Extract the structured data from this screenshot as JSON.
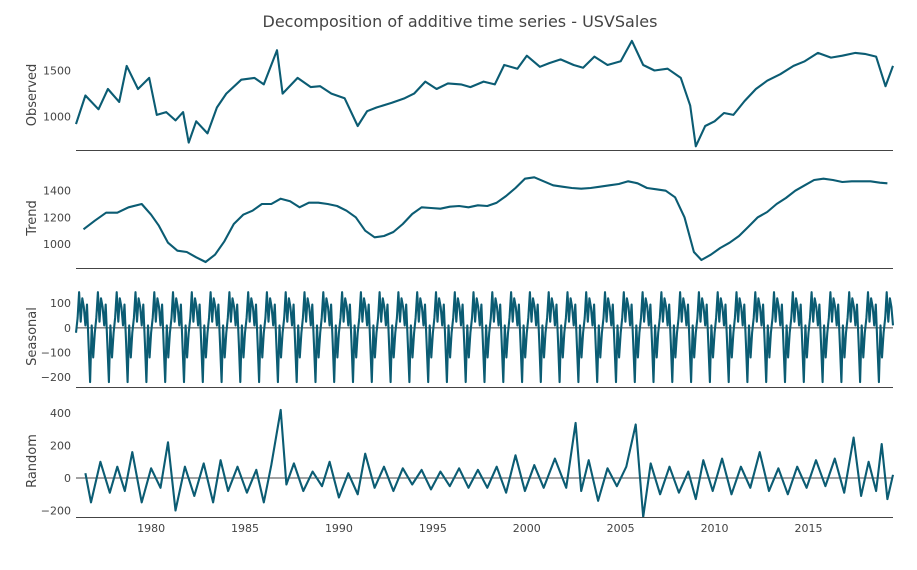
{
  "chart_data": {
    "type": "line",
    "title": "Decomposition of additive time series - USVSales",
    "x_range": [
      1976,
      2019.5
    ],
    "x_ticks": [
      1980,
      1985,
      1990,
      1995,
      2000,
      2005,
      2010,
      2015
    ],
    "x_tick_labels": [
      "1980",
      "1985",
      "1990",
      "1995",
      "2000",
      "2005",
      "2010",
      "2015"
    ],
    "color": "#0b5c73",
    "panels": [
      {
        "name": "observed",
        "ylabel": "Observed",
        "ylim": [
          640,
          1830
        ],
        "yticks": [
          1000,
          1500
        ],
        "ytick_labels": [
          "1000",
          "1500"
        ],
        "zero_line": false,
        "points": [
          [
            1976.0,
            920
          ],
          [
            1976.5,
            1230
          ],
          [
            1977.2,
            1080
          ],
          [
            1977.7,
            1300
          ],
          [
            1978.3,
            1160
          ],
          [
            1978.7,
            1550
          ],
          [
            1979.3,
            1300
          ],
          [
            1979.9,
            1420
          ],
          [
            1980.3,
            1020
          ],
          [
            1980.8,
            1050
          ],
          [
            1981.3,
            960
          ],
          [
            1981.7,
            1050
          ],
          [
            1982.0,
            720
          ],
          [
            1982.4,
            950
          ],
          [
            1983.0,
            820
          ],
          [
            1983.5,
            1100
          ],
          [
            1984.0,
            1250
          ],
          [
            1984.8,
            1400
          ],
          [
            1985.5,
            1420
          ],
          [
            1986.0,
            1350
          ],
          [
            1986.7,
            1720
          ],
          [
            1987.0,
            1250
          ],
          [
            1987.8,
            1420
          ],
          [
            1988.5,
            1320
          ],
          [
            1989.0,
            1330
          ],
          [
            1989.6,
            1250
          ],
          [
            1990.3,
            1200
          ],
          [
            1991.0,
            900
          ],
          [
            1991.5,
            1060
          ],
          [
            1992.0,
            1100
          ],
          [
            1992.8,
            1150
          ],
          [
            1993.5,
            1200
          ],
          [
            1994.0,
            1250
          ],
          [
            1994.6,
            1380
          ],
          [
            1995.2,
            1300
          ],
          [
            1995.8,
            1360
          ],
          [
            1996.5,
            1350
          ],
          [
            1997.0,
            1320
          ],
          [
            1997.7,
            1380
          ],
          [
            1998.3,
            1350
          ],
          [
            1998.8,
            1560
          ],
          [
            1999.5,
            1520
          ],
          [
            2000.0,
            1660
          ],
          [
            2000.7,
            1540
          ],
          [
            2001.2,
            1580
          ],
          [
            2001.8,
            1620
          ],
          [
            2002.5,
            1560
          ],
          [
            2003.0,
            1530
          ],
          [
            2003.6,
            1650
          ],
          [
            2004.3,
            1560
          ],
          [
            2005.0,
            1600
          ],
          [
            2005.6,
            1820
          ],
          [
            2006.2,
            1560
          ],
          [
            2006.8,
            1500
          ],
          [
            2007.5,
            1520
          ],
          [
            2008.2,
            1420
          ],
          [
            2008.7,
            1120
          ],
          [
            2009.0,
            680
          ],
          [
            2009.5,
            900
          ],
          [
            2010.0,
            950
          ],
          [
            2010.5,
            1040
          ],
          [
            2011.0,
            1020
          ],
          [
            2011.6,
            1170
          ],
          [
            2012.2,
            1300
          ],
          [
            2012.8,
            1390
          ],
          [
            2013.5,
            1460
          ],
          [
            2014.2,
            1550
          ],
          [
            2014.8,
            1600
          ],
          [
            2015.5,
            1690
          ],
          [
            2016.2,
            1640
          ],
          [
            2016.8,
            1660
          ],
          [
            2017.5,
            1690
          ],
          [
            2018.0,
            1680
          ],
          [
            2018.6,
            1650
          ],
          [
            2019.1,
            1330
          ],
          [
            2019.5,
            1550
          ]
        ]
      },
      {
        "name": "trend",
        "ylabel": "Trend",
        "ylim": [
          820,
          1570
        ],
        "yticks": [
          1000,
          1200,
          1400
        ],
        "ytick_labels": [
          "1000",
          "1200",
          "1400"
        ],
        "zero_line": false,
        "points": [
          [
            1976.4,
            1110
          ],
          [
            1977.0,
            1175
          ],
          [
            1977.6,
            1235
          ],
          [
            1978.2,
            1235
          ],
          [
            1978.8,
            1275
          ],
          [
            1979.5,
            1300
          ],
          [
            1980.0,
            1220
          ],
          [
            1980.4,
            1140
          ],
          [
            1980.9,
            1010
          ],
          [
            1981.4,
            950
          ],
          [
            1981.9,
            940
          ],
          [
            1982.4,
            900
          ],
          [
            1982.9,
            865
          ],
          [
            1983.4,
            920
          ],
          [
            1983.9,
            1020
          ],
          [
            1984.4,
            1150
          ],
          [
            1984.9,
            1220
          ],
          [
            1985.4,
            1250
          ],
          [
            1985.9,
            1300
          ],
          [
            1986.4,
            1300
          ],
          [
            1986.9,
            1340
          ],
          [
            1987.4,
            1320
          ],
          [
            1987.9,
            1275
          ],
          [
            1988.4,
            1310
          ],
          [
            1988.9,
            1310
          ],
          [
            1989.4,
            1300
          ],
          [
            1989.9,
            1285
          ],
          [
            1990.4,
            1250
          ],
          [
            1990.9,
            1200
          ],
          [
            1991.4,
            1100
          ],
          [
            1991.9,
            1050
          ],
          [
            1992.4,
            1060
          ],
          [
            1992.9,
            1090
          ],
          [
            1993.4,
            1150
          ],
          [
            1993.9,
            1225
          ],
          [
            1994.4,
            1275
          ],
          [
            1994.9,
            1270
          ],
          [
            1995.4,
            1265
          ],
          [
            1995.9,
            1280
          ],
          [
            1996.4,
            1285
          ],
          [
            1996.9,
            1275
          ],
          [
            1997.4,
            1290
          ],
          [
            1997.9,
            1285
          ],
          [
            1998.4,
            1310
          ],
          [
            1998.9,
            1360
          ],
          [
            1999.4,
            1420
          ],
          [
            1999.9,
            1490
          ],
          [
            2000.4,
            1500
          ],
          [
            2000.9,
            1470
          ],
          [
            2001.4,
            1440
          ],
          [
            2001.9,
            1430
          ],
          [
            2002.4,
            1420
          ],
          [
            2002.9,
            1415
          ],
          [
            2003.4,
            1420
          ],
          [
            2003.9,
            1430
          ],
          [
            2004.4,
            1440
          ],
          [
            2004.9,
            1450
          ],
          [
            2005.4,
            1470
          ],
          [
            2005.9,
            1455
          ],
          [
            2006.4,
            1420
          ],
          [
            2006.9,
            1410
          ],
          [
            2007.4,
            1400
          ],
          [
            2007.9,
            1350
          ],
          [
            2008.4,
            1200
          ],
          [
            2008.9,
            940
          ],
          [
            2009.3,
            880
          ],
          [
            2009.8,
            920
          ],
          [
            2010.3,
            970
          ],
          [
            2010.8,
            1010
          ],
          [
            2011.3,
            1060
          ],
          [
            2011.8,
            1130
          ],
          [
            2012.3,
            1200
          ],
          [
            2012.8,
            1240
          ],
          [
            2013.3,
            1300
          ],
          [
            2013.8,
            1345
          ],
          [
            2014.3,
            1400
          ],
          [
            2014.8,
            1440
          ],
          [
            2015.3,
            1480
          ],
          [
            2015.8,
            1490
          ],
          [
            2016.3,
            1480
          ],
          [
            2016.8,
            1465
          ],
          [
            2017.3,
            1470
          ],
          [
            2017.8,
            1470
          ],
          [
            2018.3,
            1470
          ],
          [
            2018.8,
            1460
          ],
          [
            2019.2,
            1455
          ]
        ]
      },
      {
        "name": "seasonal",
        "ylabel": "Seasonal",
        "ylim": [
          -240,
          170
        ],
        "yticks": [
          -200,
          -100,
          0,
          100
        ],
        "ytick_labels": [
          "−200",
          "−100",
          "0",
          "100"
        ],
        "zero_line": true,
        "pattern": [
          -20,
          40,
          145,
          25,
          120,
          85,
          10,
          95,
          -60,
          -220,
          10,
          -120
        ],
        "start": 1976.0,
        "end": 2019.5
      },
      {
        "name": "random",
        "ylabel": "Random",
        "ylim": [
          -240,
          450
        ],
        "yticks": [
          -200,
          0,
          200,
          400
        ],
        "ytick_labels": [
          "−200",
          "0",
          "200",
          "400"
        ],
        "zero_line": true,
        "points": [
          [
            1976.5,
            30
          ],
          [
            1976.8,
            -150
          ],
          [
            1977.3,
            100
          ],
          [
            1977.8,
            -90
          ],
          [
            1978.2,
            70
          ],
          [
            1978.6,
            -80
          ],
          [
            1979.0,
            160
          ],
          [
            1979.5,
            -150
          ],
          [
            1980.0,
            60
          ],
          [
            1980.5,
            -60
          ],
          [
            1980.9,
            220
          ],
          [
            1981.3,
            -200
          ],
          [
            1981.8,
            70
          ],
          [
            1982.3,
            -110
          ],
          [
            1982.8,
            90
          ],
          [
            1983.3,
            -150
          ],
          [
            1983.7,
            110
          ],
          [
            1984.1,
            -80
          ],
          [
            1984.6,
            70
          ],
          [
            1985.1,
            -90
          ],
          [
            1985.6,
            50
          ],
          [
            1986.0,
            -150
          ],
          [
            1986.4,
            80
          ],
          [
            1986.9,
            420
          ],
          [
            1987.2,
            -40
          ],
          [
            1987.6,
            90
          ],
          [
            1988.1,
            -80
          ],
          [
            1988.6,
            40
          ],
          [
            1989.1,
            -50
          ],
          [
            1989.5,
            100
          ],
          [
            1990.0,
            -120
          ],
          [
            1990.5,
            30
          ],
          [
            1991.0,
            -100
          ],
          [
            1991.4,
            150
          ],
          [
            1991.9,
            -60
          ],
          [
            1992.4,
            70
          ],
          [
            1992.9,
            -80
          ],
          [
            1993.4,
            60
          ],
          [
            1993.9,
            -40
          ],
          [
            1994.4,
            50
          ],
          [
            1994.9,
            -70
          ],
          [
            1995.4,
            40
          ],
          [
            1995.9,
            -50
          ],
          [
            1996.4,
            60
          ],
          [
            1996.9,
            -60
          ],
          [
            1997.4,
            50
          ],
          [
            1997.9,
            -60
          ],
          [
            1998.4,
            70
          ],
          [
            1998.9,
            -90
          ],
          [
            1999.4,
            140
          ],
          [
            1999.9,
            -80
          ],
          [
            2000.4,
            80
          ],
          [
            2000.9,
            -60
          ],
          [
            2001.5,
            120
          ],
          [
            2002.1,
            -60
          ],
          [
            2002.6,
            340
          ],
          [
            2002.9,
            -80
          ],
          [
            2003.3,
            110
          ],
          [
            2003.8,
            -140
          ],
          [
            2004.3,
            60
          ],
          [
            2004.8,
            -50
          ],
          [
            2005.3,
            70
          ],
          [
            2005.8,
            330
          ],
          [
            2006.2,
            -240
          ],
          [
            2006.6,
            90
          ],
          [
            2007.1,
            -100
          ],
          [
            2007.6,
            70
          ],
          [
            2008.1,
            -90
          ],
          [
            2008.6,
            40
          ],
          [
            2009.0,
            -130
          ],
          [
            2009.4,
            110
          ],
          [
            2009.9,
            -80
          ],
          [
            2010.4,
            120
          ],
          [
            2010.9,
            -100
          ],
          [
            2011.4,
            70
          ],
          [
            2011.9,
            -60
          ],
          [
            2012.4,
            160
          ],
          [
            2012.9,
            -80
          ],
          [
            2013.4,
            60
          ],
          [
            2013.9,
            -100
          ],
          [
            2014.4,
            70
          ],
          [
            2014.9,
            -60
          ],
          [
            2015.4,
            110
          ],
          [
            2015.9,
            -50
          ],
          [
            2016.4,
            120
          ],
          [
            2016.9,
            -90
          ],
          [
            2017.4,
            250
          ],
          [
            2017.8,
            -110
          ],
          [
            2018.2,
            100
          ],
          [
            2018.6,
            -80
          ],
          [
            2018.9,
            210
          ],
          [
            2019.2,
            -130
          ],
          [
            2019.5,
            20
          ]
        ]
      }
    ]
  }
}
